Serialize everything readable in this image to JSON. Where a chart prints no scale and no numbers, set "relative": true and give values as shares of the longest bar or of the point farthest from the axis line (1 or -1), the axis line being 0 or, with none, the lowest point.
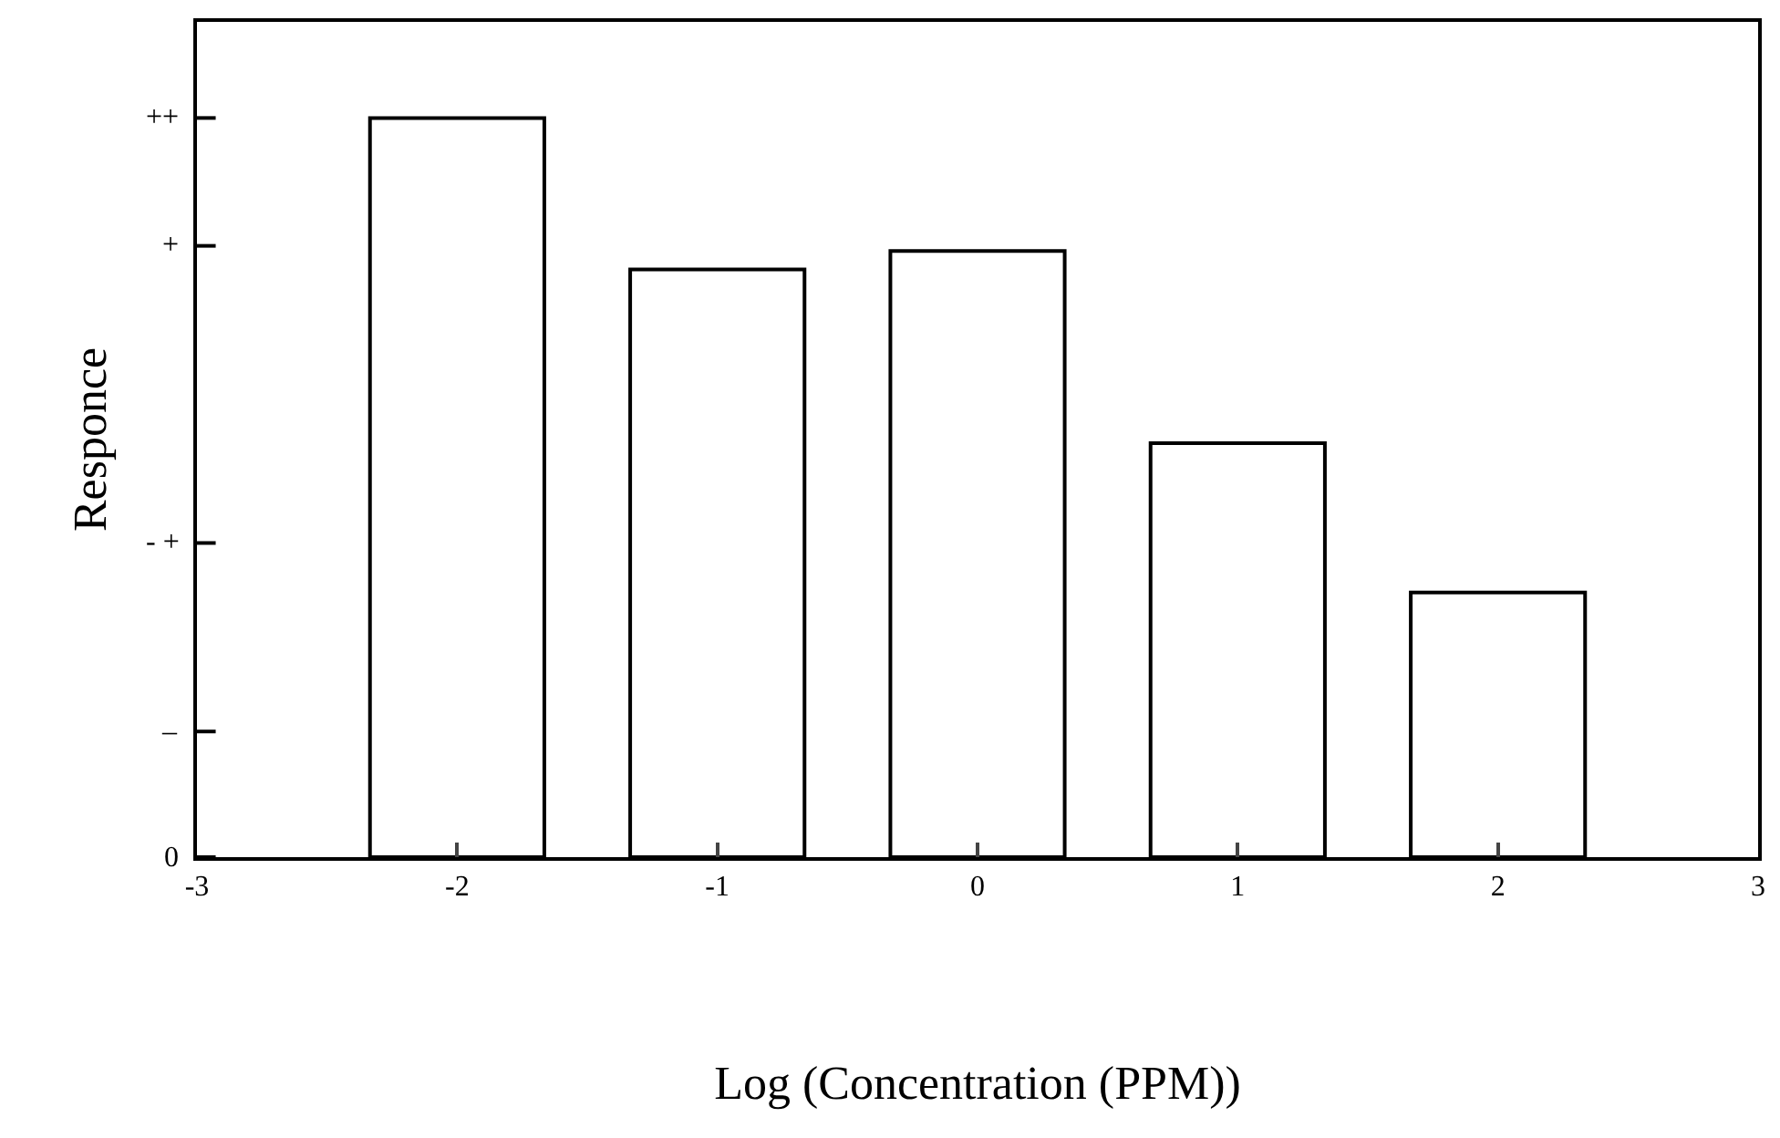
{
  "chart_data": {
    "type": "bar",
    "xlabel": "Log (Concentration (PPM))",
    "ylabel": "Responce",
    "x": [
      -2,
      -1,
      0,
      1,
      2
    ],
    "values": [
      1.0,
      0.795,
      0.82,
      0.56,
      0.358
    ],
    "color": "#ffffff",
    "xlim": [
      -3,
      3
    ],
    "xticks": [
      -3,
      -2,
      -1,
      0,
      1,
      2,
      3
    ],
    "relative": true,
    "ref_lines": [
      {
        "axis": "y",
        "value": 0,
        "label": "0"
      },
      {
        "axis": "y",
        "value": 0.17,
        "label": "–"
      },
      {
        "axis": "y",
        "value": 0.425,
        "label": "- +"
      },
      {
        "axis": "y",
        "value": 0.827,
        "label": "+"
      },
      {
        "axis": "y",
        "value": 1.0,
        "label": "++"
      }
    ]
  }
}
